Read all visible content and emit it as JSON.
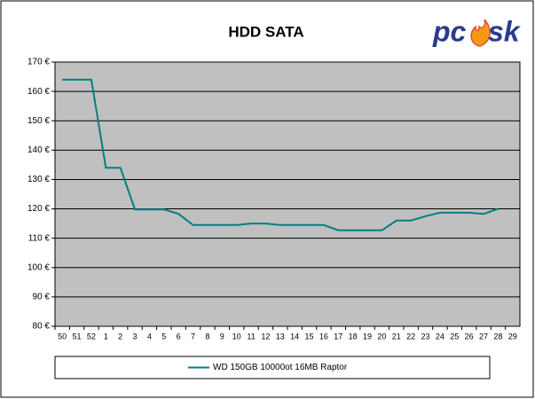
{
  "chart_data": {
    "type": "line",
    "title": "HDD SATA",
    "categories": [
      "50",
      "51",
      "52",
      "1",
      "2",
      "3",
      "4",
      "5",
      "6",
      "7",
      "8",
      "9",
      "10",
      "11",
      "12",
      "13",
      "14",
      "15",
      "16",
      "17",
      "18",
      "19",
      "20",
      "21",
      "22",
      "23",
      "24",
      "25",
      "26",
      "27",
      "28",
      "29"
    ],
    "series": [
      {
        "name": "WD 150GB 10000ot 16MB Raptor",
        "color": "#008080",
        "values": [
          164,
          164,
          164,
          134,
          134,
          119.8,
          119.8,
          119.8,
          118.3,
          114.5,
          114.5,
          114.5,
          114.5,
          115,
          115,
          114.5,
          114.5,
          114.5,
          114.5,
          112.7,
          112.7,
          112.7,
          112.7,
          116,
          116,
          117.5,
          118.7,
          118.7,
          118.7,
          118.3,
          120,
          null
        ]
      }
    ],
    "ylim": [
      80,
      170
    ],
    "yticks": [
      {
        "value": 80,
        "label": "80 €"
      },
      {
        "value": 90,
        "label": "90 €"
      },
      {
        "value": 100,
        "label": "100 €"
      },
      {
        "value": 110,
        "label": "110 €"
      },
      {
        "value": 120,
        "label": "120 €"
      },
      {
        "value": 130,
        "label": "130 €"
      },
      {
        "value": 140,
        "label": "140 €"
      },
      {
        "value": 150,
        "label": "150 €"
      },
      {
        "value": 160,
        "label": "160 €"
      },
      {
        "value": 170,
        "label": "170 €"
      }
    ],
    "grid": true,
    "plot_background": "#c0c0c0",
    "legend": "bottom"
  },
  "logo": {
    "left": "pc",
    "right": "sk"
  }
}
